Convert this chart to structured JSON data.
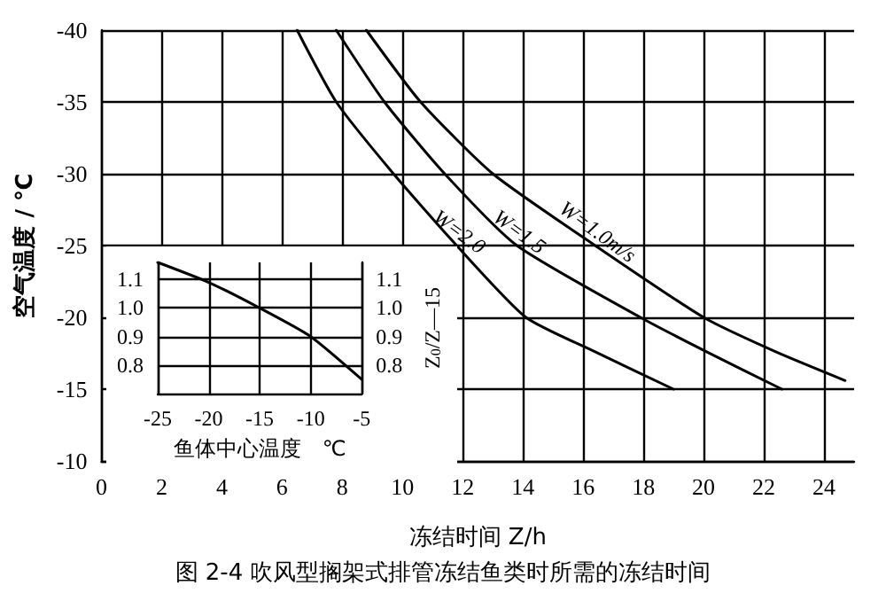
{
  "chart_data": [
    {
      "type": "line",
      "title": "图 2-4 吹风型搁架式排管冻结鱼类时所需的冻结时间",
      "xlabel": "冻结时间 Z/h",
      "ylabel": "空气温度 / ℃",
      "xlim": [
        0,
        25
      ],
      "xticks": [
        0,
        2,
        4,
        6,
        8,
        10,
        12,
        14,
        16,
        18,
        20,
        22,
        24
      ],
      "ylim": [
        -10,
        -40
      ],
      "yticks": [
        -10,
        -15,
        -20,
        -25,
        -30,
        -35,
        -40
      ],
      "grid": true,
      "marker": "none",
      "line_style": "solid",
      "series": [
        {
          "name": "W=1.0m/s",
          "color": "#000000",
          "x": [
            8.8,
            10.6,
            13.0,
            16.4,
            20.0,
            22.4,
            24.7
          ],
          "values": [
            -40,
            -35,
            -30,
            -25,
            -20,
            -17.6,
            -15.6
          ]
        },
        {
          "name": "W=1.5",
          "color": "#000000",
          "x": [
            7.8,
            9.4,
            11.4,
            13.8,
            17.9,
            20.1,
            22.6
          ],
          "values": [
            -40,
            -35,
            -30,
            -25,
            -20,
            -17.6,
            -15
          ]
        },
        {
          "name": "W=2.0",
          "color": "#000000",
          "x": [
            6.5,
            7.8,
            9.7,
            11.8,
            14.1,
            16.4,
            19.0
          ],
          "values": [
            -40,
            -35,
            -30,
            -25,
            -20,
            -17.6,
            -15
          ]
        }
      ]
    },
    {
      "type": "line",
      "xlabel": "鱼体中心温度　℃",
      "y2label": "Z$_{0}$/Z—15",
      "xlim": [
        -25,
        -5
      ],
      "xticks": [
        -25,
        -20,
        -15,
        -10,
        -5
      ],
      "ylim": [
        0.7,
        1.16
      ],
      "yticks": [
        {
          "value": 0.8,
          "label": "0.8"
        },
        {
          "value": 0.9,
          "label": "0.9"
        },
        {
          "value": 1.0,
          "label": "1.0"
        },
        {
          "value": 1.1,
          "label": "1.1"
        }
      ],
      "y2lim": [
        0.7,
        1.16
      ],
      "y2ticks": [
        {
          "value": 0.8,
          "label": "0.8"
        },
        {
          "value": 0.9,
          "label": "0.9"
        },
        {
          "value": 1.0,
          "label": "1.0"
        },
        {
          "value": 1.1,
          "label": "1.1"
        }
      ],
      "grid": true,
      "marker": "none",
      "line_style": "solid",
      "series": [
        {
          "color": "#000000",
          "x": [
            -25,
            -20,
            -15,
            -10,
            -5
          ],
          "values": [
            1.16,
            1.09,
            1.0,
            0.9,
            0.75
          ]
        }
      ]
    }
  ]
}
